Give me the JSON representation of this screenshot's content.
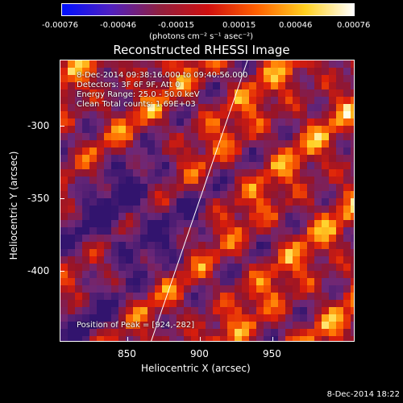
{
  "colorbar": {
    "ticks": [
      "-0.00076",
      "-0.00046",
      "-0.00015",
      "0.00015",
      "0.00046",
      "0.00076"
    ],
    "units": "(photons cm⁻² s⁻¹ asec⁻²)",
    "colors": [
      "#0010ff",
      "#5020c0",
      "#902040",
      "#d01010",
      "#ff6000",
      "#ffd020",
      "#ffffff"
    ]
  },
  "title": "Reconstructed RHESSI Image",
  "info": {
    "line1": "8-Dec-2014 09:38:16.000 to 09:40:56.000",
    "line2": "Detectors: 3F 6F 9F, Att 0",
    "line3": "Energy Range: 25.0 - 50.0 keV",
    "line4": "Clean    Total counts: 1.69E+03"
  },
  "peak": "Position of Peak = [924,-282]",
  "axes": {
    "xlabel": "Heliocentric X (arcsec)",
    "ylabel": "Heliocentric Y (arcsec)",
    "xticks": [
      "850",
      "900",
      "950"
    ],
    "yticks": [
      "-300",
      "-350",
      "-400"
    ]
  },
  "timestamp": "8-Dec-2014 18:22"
}
